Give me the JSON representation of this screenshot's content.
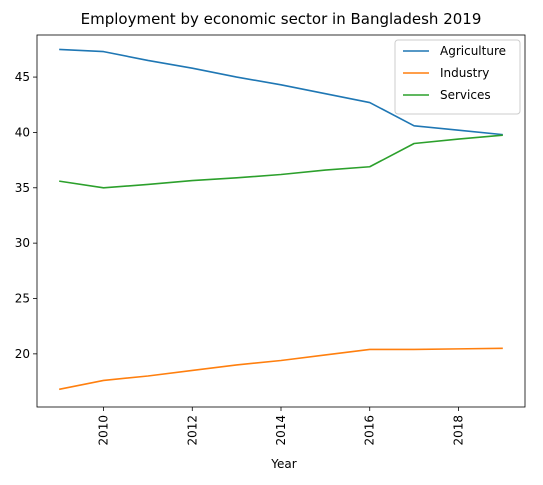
{
  "chart_data": {
    "type": "line",
    "title": "Employment by economic sector in Bangladesh 2019",
    "xlabel": "Year",
    "ylabel": "",
    "x": [
      2009,
      2010,
      2011,
      2012,
      2013,
      2014,
      2015,
      2016,
      2017,
      2018,
      2019
    ],
    "xlim": [
      2008.5,
      2019.5
    ],
    "ylim": [
      15.2,
      48.8
    ],
    "x_ticks": [
      "2010",
      "2012",
      "2014",
      "2016",
      "2018"
    ],
    "y_ticks": [
      "20",
      "25",
      "30",
      "35",
      "40",
      "45"
    ],
    "grid": false,
    "legend_position": "top-right",
    "series": [
      {
        "name": "Agriculture",
        "color": "#1f77b4",
        "values": [
          47.5,
          47.3,
          46.5,
          45.8,
          45.0,
          44.3,
          43.5,
          42.7,
          40.6,
          40.2,
          39.8
        ]
      },
      {
        "name": "Industry",
        "color": "#ff7f0e",
        "values": [
          16.8,
          17.6,
          18.0,
          18.5,
          19.0,
          19.4,
          19.9,
          20.4,
          20.4,
          20.45,
          20.5
        ]
      },
      {
        "name": "Services",
        "color": "#2ca02c",
        "values": [
          35.6,
          35.0,
          35.3,
          35.65,
          35.9,
          36.2,
          36.6,
          36.9,
          39.0,
          39.4,
          39.75
        ]
      }
    ]
  }
}
